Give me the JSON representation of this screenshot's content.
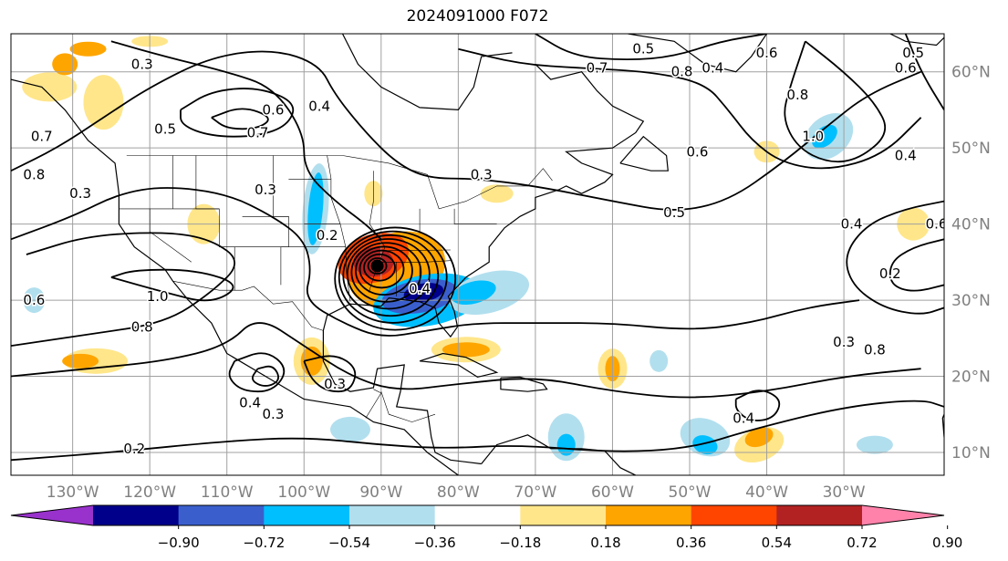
{
  "title": "2024091000 F072",
  "map": {
    "lon_range": [
      -138,
      -17
    ],
    "lat_range": [
      7,
      65
    ],
    "lon_ticks": [
      {
        "value": -130,
        "label": "130°W"
      },
      {
        "value": -120,
        "label": "120°W"
      },
      {
        "value": -110,
        "label": "110°W"
      },
      {
        "value": -100,
        "label": "100°W"
      },
      {
        "value": -90,
        "label": "90°W"
      },
      {
        "value": -80,
        "label": "80°W"
      },
      {
        "value": -70,
        "label": "70°W"
      },
      {
        "value": -60,
        "label": "60°W"
      },
      {
        "value": -50,
        "label": "50°W"
      },
      {
        "value": -40,
        "label": "40°W"
      },
      {
        "value": -30,
        "label": "30°W"
      }
    ],
    "lat_ticks": [
      {
        "value": 10,
        "label": "10°N"
      },
      {
        "value": 20,
        "label": "20°N"
      },
      {
        "value": 30,
        "label": "30°N"
      },
      {
        "value": 40,
        "label": "40°N"
      },
      {
        "value": 50,
        "label": "50°N"
      },
      {
        "value": 60,
        "label": "60°N"
      }
    ],
    "grid": true,
    "tick_label_color": "#808080",
    "storm_center": {
      "lon": -90.5,
      "lat": 34.5
    },
    "contour_labels": [
      {
        "text": "0.3",
        "lon": -121,
        "lat": 61
      },
      {
        "text": "0.6",
        "lon": -104,
        "lat": 55
      },
      {
        "text": "0.4",
        "lon": -98,
        "lat": 55.5
      },
      {
        "text": "0.7",
        "lon": -106,
        "lat": 52
      },
      {
        "text": "0.5",
        "lon": -118,
        "lat": 52.5
      },
      {
        "text": "0.5",
        "lon": -56,
        "lat": 63
      },
      {
        "text": "0.7",
        "lon": -62,
        "lat": 60.5
      },
      {
        "text": "0.8",
        "lon": -51,
        "lat": 60
      },
      {
        "text": "0.4",
        "lon": -47,
        "lat": 60.5
      },
      {
        "text": "0.6",
        "lon": -40,
        "lat": 62.5
      },
      {
        "text": "0.6",
        "lon": -22,
        "lat": 60.5
      },
      {
        "text": "0.5",
        "lon": -21,
        "lat": 62.5
      },
      {
        "text": "0.8",
        "lon": -36,
        "lat": 57
      },
      {
        "text": "1.0",
        "lon": -34,
        "lat": 51.5
      },
      {
        "text": "0.6",
        "lon": -49,
        "lat": 49.5
      },
      {
        "text": "0.4",
        "lon": -22,
        "lat": 49
      },
      {
        "text": "0.3",
        "lon": -77,
        "lat": 46.5
      },
      {
        "text": "0.5",
        "lon": -52,
        "lat": 41.5
      },
      {
        "text": "0.4",
        "lon": -29,
        "lat": 40
      },
      {
        "text": "0.6",
        "lon": -18,
        "lat": 40
      },
      {
        "text": "0.2",
        "lon": -24,
        "lat": 33.5
      },
      {
        "text": "0.3",
        "lon": -30,
        "lat": 24.5
      },
      {
        "text": "0.8",
        "lon": -26,
        "lat": 23.5
      },
      {
        "text": "0.4",
        "lon": -43,
        "lat": 14.5
      },
      {
        "text": "0.7",
        "lon": -134,
        "lat": 51.5
      },
      {
        "text": "0.8",
        "lon": -135,
        "lat": 46.5
      },
      {
        "text": "0.3",
        "lon": -129,
        "lat": 44
      },
      {
        "text": "0.6",
        "lon": -135,
        "lat": 30
      },
      {
        "text": "1.0",
        "lon": -119,
        "lat": 30.5
      },
      {
        "text": "0.8",
        "lon": -121,
        "lat": 26.5
      },
      {
        "text": "0.3",
        "lon": -105,
        "lat": 44.5
      },
      {
        "text": "0.2",
        "lon": -97,
        "lat": 38.5
      },
      {
        "text": "0.4",
        "lon": -85,
        "lat": 31.5
      },
      {
        "text": "0.4",
        "lon": -107,
        "lat": 16.5
      },
      {
        "text": "0.3",
        "lon": -104,
        "lat": 15
      },
      {
        "text": "0.3",
        "lon": -96,
        "lat": 19
      },
      {
        "text": "0.2",
        "lon": -122,
        "lat": 10.5
      }
    ]
  },
  "colorbar": {
    "colors": [
      "#9932CC",
      "#00008B",
      "#3A5FCD",
      "#00BFFF",
      "#B2DFEE",
      "#FFFFFF",
      "#FFE68A",
      "#FFA500",
      "#FF4500",
      "#B22222",
      "#FF82AB"
    ],
    "tick_labels": [
      "−0.90",
      "−0.72",
      "−0.54",
      "−0.36",
      "−0.18",
      "0.18",
      "0.36",
      "0.54",
      "0.72",
      "0.90"
    ]
  }
}
